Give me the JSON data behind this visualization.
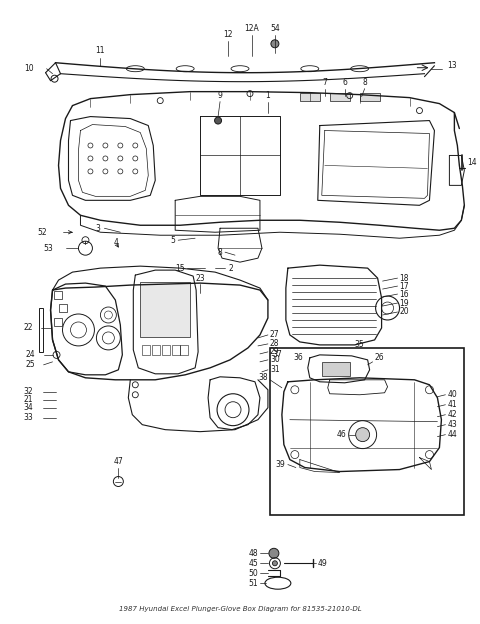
{
  "title": "1987 Hyundai Excel Plunger-Glove Box Diagram for 81535-21010-DL",
  "bg_color": "#ffffff",
  "line_color": "#1a1a1a",
  "fig_width": 4.8,
  "fig_height": 6.24,
  "dpi": 100
}
